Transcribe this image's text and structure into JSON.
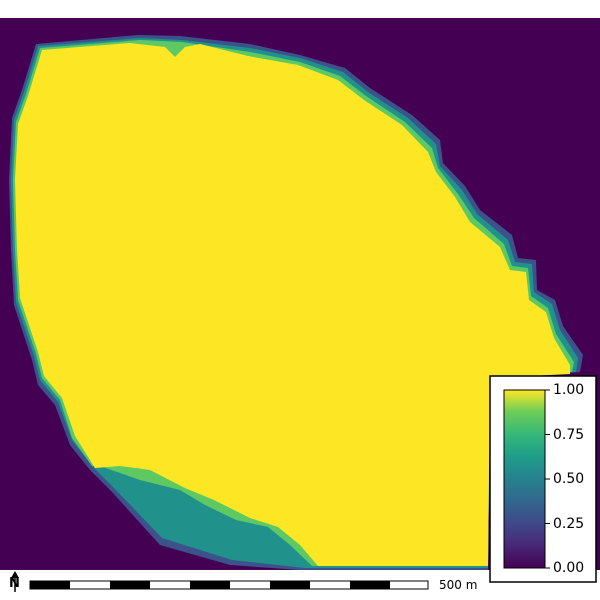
{
  "map": {
    "colors": {
      "background": "#440154",
      "core": "#fde725",
      "high": "#5ec962",
      "mid": "#21918c",
      "low": "#3b528b",
      "frame_bg": "#ffffff"
    }
  },
  "legend": {
    "colormap": "viridis",
    "range": [
      0.0,
      1.0
    ],
    "ticks": [
      "1.00",
      "0.75",
      "0.50",
      "0.25",
      "0.00"
    ]
  },
  "scale_bar": {
    "label": "500 m"
  },
  "north_arrow": {
    "letter": "N",
    "icon": "north-arrow-icon"
  }
}
